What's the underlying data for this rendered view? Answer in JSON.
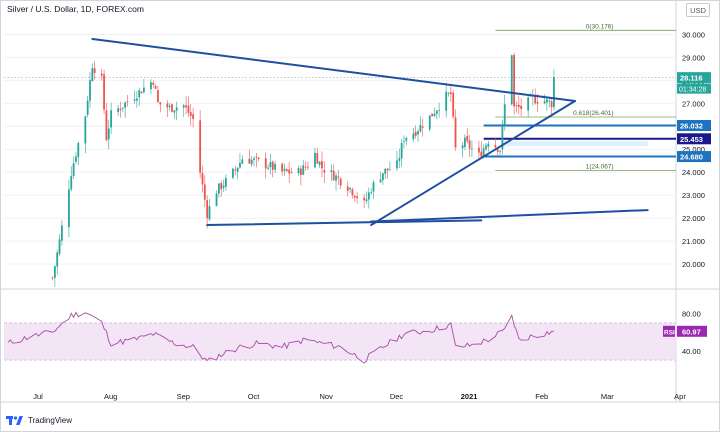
{
  "header": {
    "title": "Silver / U.S. Dollar, 1D, FOREX.com",
    "currency_button": "USD"
  },
  "footer": {
    "brand": "TradingView"
  },
  "chart_data": [
    {
      "type": "candlestick",
      "title": "Silver / U.S. Dollar, 1D, FOREX.com",
      "ylim": [
        19.0,
        30.8
      ],
      "x_ticks": [
        "Jul",
        "Aug",
        "Sep",
        "Oct",
        "Nov",
        "Dec",
        "2021",
        "Feb",
        "Mar",
        "Apr"
      ],
      "y_ticks": [
        20,
        21,
        22,
        23,
        24,
        25,
        26,
        27,
        28,
        29,
        30
      ],
      "y_tick_labels": [
        "20.000",
        "21.000",
        "22.000",
        "23.000",
        "24.000",
        "25.000",
        "26.000",
        "27.000",
        "28.000",
        "29.000",
        "30.000"
      ],
      "close_path": [
        [
          "2020-07-20",
          19.4
        ],
        [
          "2020-07-23",
          21.0
        ],
        [
          "2020-07-28",
          24.0
        ],
        [
          "2020-08-03",
          26.5
        ],
        [
          "2020-08-06",
          28.7
        ],
        [
          "2020-08-10",
          28.0
        ],
        [
          "2020-08-12",
          25.5
        ],
        [
          "2020-08-14",
          26.5
        ],
        [
          "2020-08-20",
          27.0
        ],
        [
          "2020-08-26",
          27.5
        ],
        [
          "2020-09-01",
          28.0
        ],
        [
          "2020-09-03",
          27.0
        ],
        [
          "2020-09-08",
          26.8
        ],
        [
          "2020-09-14",
          26.9
        ],
        [
          "2020-09-18",
          26.3
        ],
        [
          "2020-09-21",
          24.0
        ],
        [
          "2020-09-24",
          22.2
        ],
        [
          "2020-09-28",
          23.2
        ],
        [
          "2020-10-02",
          23.6
        ],
        [
          "2020-10-06",
          24.1
        ],
        [
          "2020-10-09",
          24.6
        ],
        [
          "2020-10-14",
          24.5
        ],
        [
          "2020-10-20",
          24.3
        ],
        [
          "2020-10-26",
          24.0
        ],
        [
          "2020-11-02",
          24.0
        ],
        [
          "2020-11-06",
          24.3
        ],
        [
          "2020-11-09",
          24.8
        ],
        [
          "2020-11-12",
          24.2
        ],
        [
          "2020-11-18",
          23.8
        ],
        [
          "2020-11-24",
          23.3
        ],
        [
          "2020-11-30",
          22.6
        ],
        [
          "2020-12-03",
          23.3
        ],
        [
          "2020-12-08",
          24.0
        ],
        [
          "2020-12-14",
          24.3
        ],
        [
          "2020-12-17",
          25.5
        ],
        [
          "2020-12-22",
          25.8
        ],
        [
          "2020-12-28",
          26.4
        ],
        [
          "2021-01-04",
          27.3
        ],
        [
          "2021-01-06",
          27.4
        ],
        [
          "2021-01-08",
          25.0
        ],
        [
          "2021-01-12",
          25.3
        ],
        [
          "2021-01-18",
          24.7
        ],
        [
          "2021-01-22",
          25.4
        ],
        [
          "2021-01-27",
          25.0
        ],
        [
          "2021-01-29",
          26.9
        ],
        [
          "2021-02-01",
          29.2
        ],
        [
          "2021-02-02",
          26.8
        ],
        [
          "2021-02-05",
          26.8
        ],
        [
          "2021-02-10",
          27.2
        ],
        [
          "2021-02-15",
          27.1
        ],
        [
          "2021-02-18",
          27.0
        ],
        [
          "2021-02-19",
          28.116
        ]
      ],
      "last_price": 28.116,
      "countdown": "01:34:28",
      "price_labels": [
        {
          "value": 28.116,
          "text": "28.116",
          "color": "#26a69a"
        },
        {
          "value": 26.032,
          "text": "26.032",
          "color": "#1e73be"
        },
        {
          "value": 25.453,
          "text": "25.453",
          "color": "#1a1a8c"
        },
        {
          "value": 24.68,
          "text": "24.680",
          "color": "#1e73be"
        }
      ],
      "fib_levels": [
        {
          "ratio": 0,
          "value": 30.176,
          "text": "0(30.176)"
        },
        {
          "ratio": 0.618,
          "value": 26.401,
          "text": "0.618(26.401)"
        },
        {
          "ratio": 1,
          "value": 24.067,
          "text": "1(24.067)"
        }
      ],
      "trendlines": [
        {
          "name": "upper-triangle-line",
          "from": [
            "2020-08-06",
            29.8
          ],
          "to": [
            "2021-02-28",
            27.1
          ]
        },
        {
          "name": "lower-triangle-line",
          "from": [
            "2020-12-03",
            21.7
          ],
          "to": [
            "2021-02-28",
            27.1
          ]
        },
        {
          "name": "base-line",
          "from": [
            "2020-09-24",
            21.7
          ],
          "to": [
            "2021-01-19",
            21.9
          ]
        },
        {
          "name": "long-support-line",
          "from": [
            "2020-12-03",
            21.85
          ],
          "to": [
            "2021-03-31",
            22.35
          ]
        }
      ],
      "support_zones": [
        {
          "value": 26.032,
          "color": "#1e73be"
        },
        {
          "value": 25.453,
          "color": "#1a1a8c"
        },
        {
          "value": 24.68,
          "color": "#1e73be"
        }
      ],
      "colors": {
        "up": "#26a69a",
        "down": "#ef5350",
        "trend": "#1e4fa0",
        "fib": "#7ba05b"
      }
    },
    {
      "type": "line",
      "name": "RSI",
      "series": [
        {
          "name": "RSI",
          "last": 60.97
        }
      ],
      "y_ticks": [
        40,
        80
      ],
      "y_tick_labels": [
        "40.00",
        "80.00"
      ],
      "band": [
        30,
        70
      ],
      "rsi_path": [
        [
          "2020-07-01",
          48
        ],
        [
          "2020-07-10",
          55
        ],
        [
          "2020-07-20",
          60
        ],
        [
          "2020-07-28",
          78
        ],
        [
          "2020-08-03",
          82
        ],
        [
          "2020-08-10",
          70
        ],
        [
          "2020-08-14",
          48
        ],
        [
          "2020-08-24",
          52
        ],
        [
          "2020-09-01",
          58
        ],
        [
          "2020-09-10",
          48
        ],
        [
          "2020-09-18",
          44
        ],
        [
          "2020-09-24",
          28
        ],
        [
          "2020-09-30",
          36
        ],
        [
          "2020-10-08",
          44
        ],
        [
          "2020-10-16",
          48
        ],
        [
          "2020-10-26",
          44
        ],
        [
          "2020-11-05",
          52
        ],
        [
          "2020-11-12",
          48
        ],
        [
          "2020-11-20",
          44
        ],
        [
          "2020-11-30",
          30
        ],
        [
          "2020-12-08",
          44
        ],
        [
          "2020-12-17",
          58
        ],
        [
          "2020-12-28",
          62
        ],
        [
          "2021-01-06",
          68
        ],
        [
          "2021-01-08",
          44
        ],
        [
          "2021-01-15",
          46
        ],
        [
          "2021-01-22",
          52
        ],
        [
          "2021-01-29",
          62
        ],
        [
          "2021-02-01",
          78
        ],
        [
          "2021-02-04",
          52
        ],
        [
          "2021-02-10",
          56
        ],
        [
          "2021-02-19",
          60.97
        ]
      ],
      "colors": {
        "line": "#a64ca6",
        "band_fill": "#f3e5f5",
        "label": "#9c27b0"
      }
    }
  ]
}
